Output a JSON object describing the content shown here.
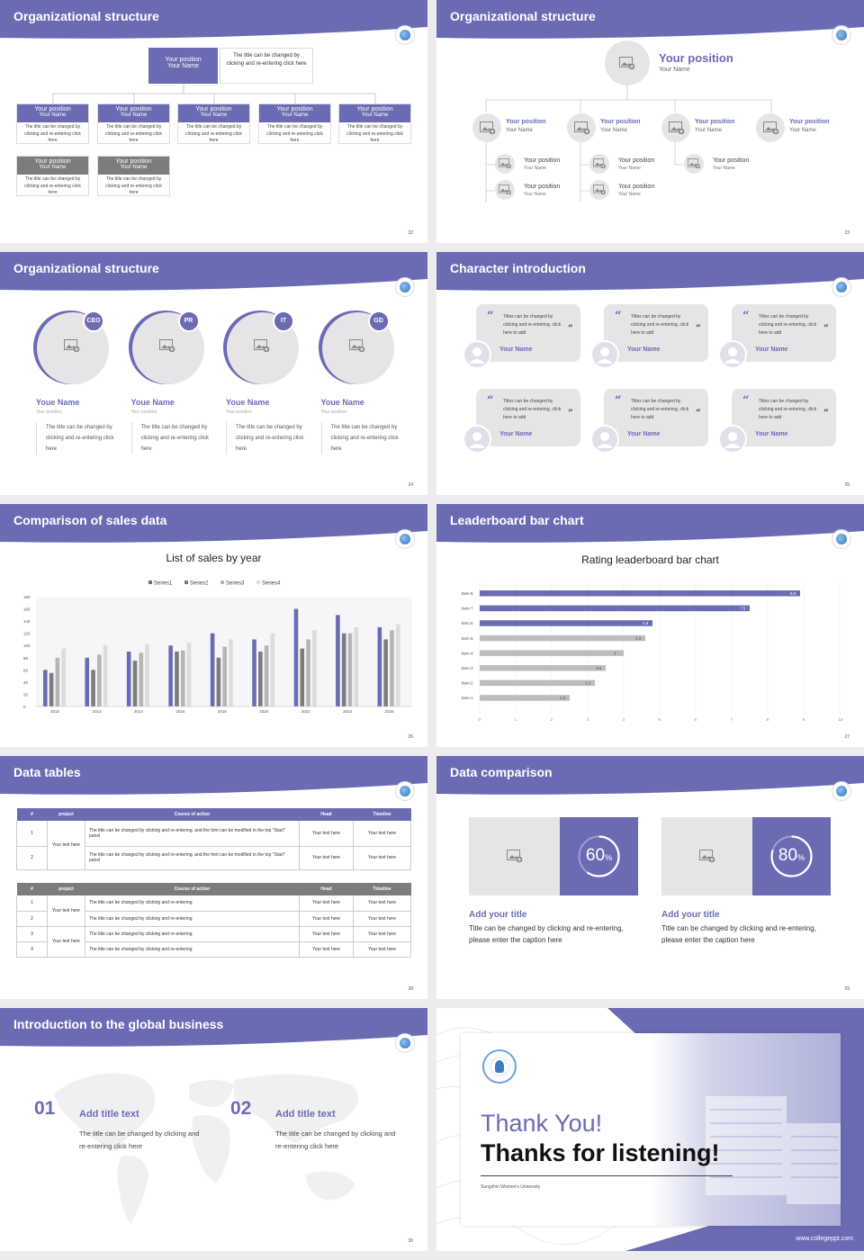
{
  "colors": {
    "brand": "#6b6bb4",
    "gray": "#777777",
    "light": "#e6e4e7"
  },
  "slides": {
    "s22": {
      "title": "Organizational structure",
      "page": "22",
      "top": {
        "position": "Your position",
        "name": "Your Name",
        "note": "The title can be changed by clicking and re-entering click here"
      },
      "box_position": "Your position",
      "box_name": "Your Name",
      "box_desc": "The title can be changed by clicking and re-entering click here"
    },
    "s23": {
      "title": "Organizational structure",
      "page": "23",
      "top": {
        "position": "Your position",
        "name": "Your Name"
      },
      "item_position": "Your position",
      "item_name": "Your Name"
    },
    "s24": {
      "title": "Organizational structure",
      "page": "24",
      "people": [
        {
          "tag": "CEO",
          "name": "Youe Name",
          "position": "Your position",
          "desc": "The title can be changed by clicking and re-entering click here"
        },
        {
          "tag": "PR",
          "name": "Youe Name",
          "position": "Your position",
          "desc": "The title can be changed by clicking and re-entering click here"
        },
        {
          "tag": "IT",
          "name": "Youe Name",
          "position": "Your position",
          "desc": "The title can be changed by clicking and re-entering click here"
        },
        {
          "tag": "GD",
          "name": "Youe Name",
          "position": "Your position",
          "desc": "The title can be changed by clicking and re-entering click here"
        }
      ]
    },
    "s25": {
      "title": "Character introduction",
      "page": "25",
      "quote": "Titles can be changed by clicking and re-entering, click here to add",
      "name": "Your Name"
    },
    "s26": {
      "title": "Comparison of sales data",
      "page": "26"
    },
    "s27": {
      "title": "Leaderboard bar chart",
      "page": "27"
    },
    "s28": {
      "title": "Data tables",
      "page": "28",
      "headers": [
        "#",
        "project",
        "Course of action",
        "Head",
        "Timeline"
      ],
      "t1_rows": [
        {
          "num": "1",
          "action": "The title can be changed by clicking and re-entering, and the font can be modified in the top \"Start\" panel",
          "head": "Your text here",
          "timeline": "Your text here"
        },
        {
          "num": "2",
          "action": "The title can be changed by clicking and re-entering, and the font can be modified in the top \"Start\" panel",
          "head": "Your text here",
          "timeline": "Your text here"
        }
      ],
      "t1_project": "Your text here",
      "t2_rows": [
        {
          "num": "1",
          "action": "The title can be changed by clicking and re-entering",
          "head": "Your text here",
          "timeline": "Your text here"
        },
        {
          "num": "2",
          "action": "The title can be changed by clicking and re-entering",
          "head": "Your text here",
          "timeline": "Your text here"
        },
        {
          "num": "3",
          "action": "The title can be changed by clicking and re-entering",
          "head": "Your text here",
          "timeline": "Your text here"
        },
        {
          "num": "4",
          "action": "The title can be changed by clicking and re-entering",
          "head": "Your text here",
          "timeline": "Your text here"
        }
      ],
      "t2_project_a": "Your text here",
      "t2_project_b": "Your text here"
    },
    "s29": {
      "title": "Data comparison",
      "page": "29",
      "cards": [
        {
          "percent": "60",
          "unit": "%",
          "value": 60,
          "heading": "Add your title",
          "text": "Title can be changed by clicking and re-entering, please enter the caption here"
        },
        {
          "percent": "80",
          "unit": "%",
          "value": 80,
          "heading": "Add your title",
          "text": "Title can be changed by clicking and re-entering, please enter the caption here"
        }
      ]
    },
    "s30": {
      "title": "Introduction to the global business",
      "page": "30",
      "items": [
        {
          "num": "01",
          "heading": "Add title text",
          "text": "The title can be changed by clicking and re-entering click here"
        },
        {
          "num": "02",
          "heading": "Add title text",
          "text": "The title can be changed by clicking and re-entering click here"
        }
      ]
    },
    "s31": {
      "thanks": "Thank You!",
      "listening": "Thanks for listening!",
      "university": "Sungshin Women's University",
      "url": "www.collegeppt.com"
    }
  },
  "chart_data": [
    {
      "type": "bar",
      "title": "List of sales by year",
      "categories": [
        "2010",
        "2012",
        "2014",
        "2016",
        "2018",
        "2020",
        "2022",
        "2024",
        "2026"
      ],
      "series": [
        {
          "name": "Series1",
          "values": [
            60,
            80,
            90,
            100,
            120,
            110,
            160,
            150,
            130
          ],
          "color": "#6b6bb4"
        },
        {
          "name": "Series2",
          "values": [
            55,
            60,
            75,
            90,
            80,
            90,
            95,
            120,
            110
          ],
          "color": "#7c7c7c"
        },
        {
          "name": "Series3",
          "values": [
            80,
            85,
            88,
            92,
            98,
            100,
            110,
            120,
            125
          ],
          "color": "#b5b5b5"
        },
        {
          "name": "Series4",
          "values": [
            95,
            100,
            102,
            105,
            110,
            120,
            125,
            130,
            135
          ],
          "color": "#dcdcdc"
        }
      ],
      "ylim": [
        0,
        180
      ],
      "yticks": [
        "0",
        "20",
        "40",
        "60",
        "80",
        "100",
        "120",
        "140",
        "160",
        "180"
      ],
      "legend": "top"
    },
    {
      "type": "bar",
      "orientation": "horizontal",
      "title": "Rating leaderboard bar chart",
      "categories": [
        "Item 8",
        "Item 7",
        "Item 6",
        "Item 5",
        "Item 4",
        "Item 3",
        "Item 2",
        "Item 1"
      ],
      "values": [
        8.9,
        7.5,
        4.8,
        4.6,
        4,
        3.5,
        3.2,
        2.5
      ],
      "highlight": [
        true,
        true,
        true,
        false,
        false,
        false,
        false,
        false
      ],
      "xlim": [
        0,
        10
      ],
      "xticks": [
        "0",
        "1",
        "2",
        "3",
        "4",
        "5",
        "6",
        "7",
        "8",
        "9",
        "10"
      ]
    }
  ]
}
